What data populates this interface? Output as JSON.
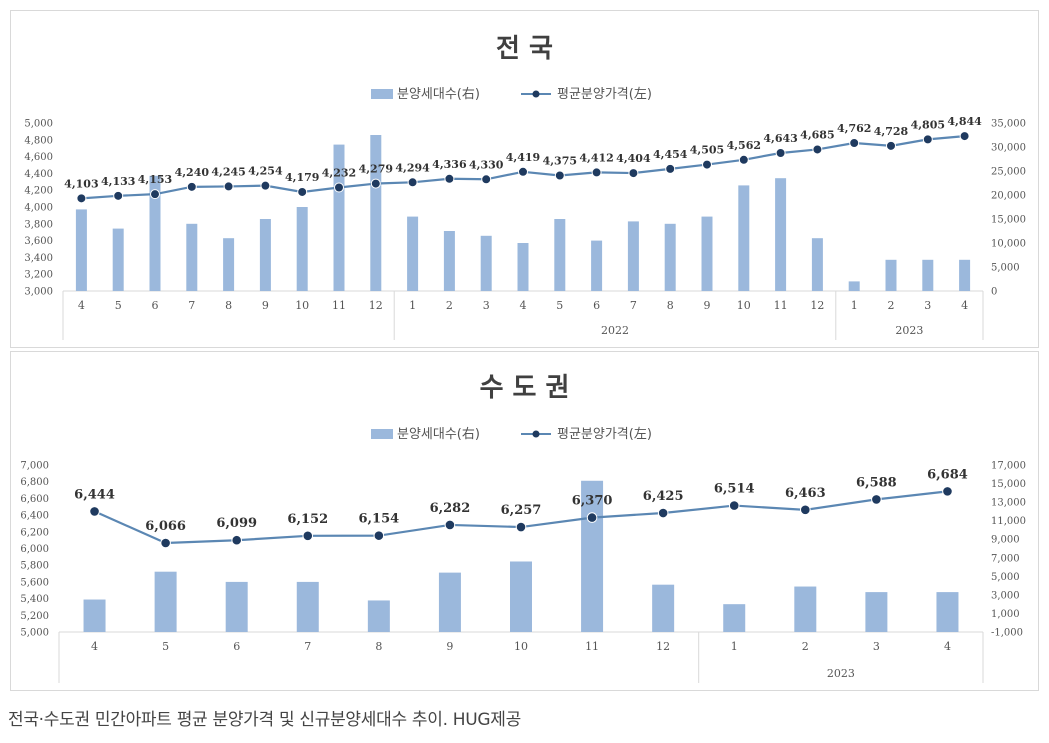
{
  "caption": "전국·수도권 민간아파트 평균 분양가격 및 신규분양세대수 추이. HUG제공",
  "colors": {
    "bar": "#9bb8dc",
    "line": "#5b87b3",
    "marker": "#1f3a5f",
    "grid": "#d9d9d9"
  },
  "chart_data": [
    {
      "type": "bar+line",
      "title": "전 국",
      "legend": [
        "분양세대수(右)",
        "평균분양가격(左)"
      ],
      "categories": [
        "4",
        "5",
        "6",
        "7",
        "8",
        "9",
        "10",
        "11",
        "12",
        "1",
        "2",
        "3",
        "4",
        "5",
        "6",
        "7",
        "8",
        "9",
        "10",
        "11",
        "12",
        "1",
        "2",
        "3",
        "4"
      ],
      "year_groups": [
        {
          "label": "",
          "start": 0,
          "end": 8
        },
        {
          "label": "2022",
          "start": 9,
          "end": 20
        },
        {
          "label": "2023",
          "start": 21,
          "end": 24
        }
      ],
      "left_axis": {
        "min": 3000,
        "max": 5000,
        "step": 200,
        "ticks": [
          "3,000",
          "3,200",
          "3,400",
          "3,600",
          "3,800",
          "4,000",
          "4,200",
          "4,400",
          "4,600",
          "4,800",
          "5,000"
        ]
      },
      "right_axis": {
        "min": 0,
        "max": 35000,
        "step": 5000,
        "ticks": [
          "0",
          "5,000",
          "10,000",
          "15,000",
          "20,000",
          "25,000",
          "30,000",
          "35,000"
        ]
      },
      "bars": [
        17000,
        13000,
        24000,
        14000,
        11000,
        15000,
        17500,
        30500,
        32500,
        15500,
        12500,
        11500,
        10000,
        15000,
        10500,
        14500,
        14000,
        15500,
        22000,
        23500,
        11000,
        2000,
        6500,
        6500,
        6500
      ],
      "line": [
        4103,
        4133,
        4153,
        4240,
        4245,
        4254,
        4179,
        4232,
        4279,
        4294,
        4336,
        4330,
        4419,
        4375,
        4412,
        4404,
        4454,
        4505,
        4562,
        4643,
        4685,
        4762,
        4728,
        4805,
        4844
      ],
      "line_labels": [
        "4,103",
        "4,133",
        "4,153",
        "4,240",
        "4,245",
        "4,254",
        "4,179",
        "4,232",
        "4,279",
        "4,294",
        "4,336",
        "4,330",
        "4,419",
        "4,375",
        "4,412",
        "4,404",
        "4,454",
        "4,505",
        "4,562",
        "4,643",
        "4,685",
        "4,762",
        "4,728",
        "4,805",
        "4,844"
      ]
    },
    {
      "type": "bar+line",
      "title": "수 도 권",
      "legend": [
        "분양세대수(右)",
        "평균분양가격(左)"
      ],
      "categories": [
        "4",
        "5",
        "6",
        "7",
        "8",
        "9",
        "10",
        "11",
        "12",
        "1",
        "2",
        "3",
        "4"
      ],
      "year_groups": [
        {
          "label": "",
          "start": 0,
          "end": 8
        },
        {
          "label": "2023",
          "start": 9,
          "end": 12
        }
      ],
      "left_axis": {
        "min": 5000,
        "max": 7000,
        "step": 200,
        "ticks": [
          "5,000",
          "5,200",
          "5,400",
          "5,600",
          "5,800",
          "6,000",
          "6,200",
          "6,400",
          "6,600",
          "6,800",
          "7,000"
        ]
      },
      "right_axis": {
        "min": -1000,
        "max": 17000,
        "step": 2000,
        "ticks": [
          "-1,000",
          "1,000",
          "3,000",
          "5,000",
          "7,000",
          "9,000",
          "11,000",
          "13,000",
          "15,000",
          "17,000"
        ]
      },
      "bars": [
        2500,
        5500,
        4400,
        4400,
        2400,
        5400,
        6600,
        15300,
        4100,
        2000,
        3900,
        3300,
        3300
      ],
      "line": [
        6444,
        6066,
        6099,
        6152,
        6154,
        6282,
        6257,
        6370,
        6425,
        6514,
        6463,
        6588,
        6684
      ],
      "line_labels": [
        "6,444",
        "6,066",
        "6,099",
        "6,152",
        "6,154",
        "6,282",
        "6,257",
        "6,370",
        "6,425",
        "6,514",
        "6,463",
        "6,588",
        "6,684"
      ]
    }
  ]
}
